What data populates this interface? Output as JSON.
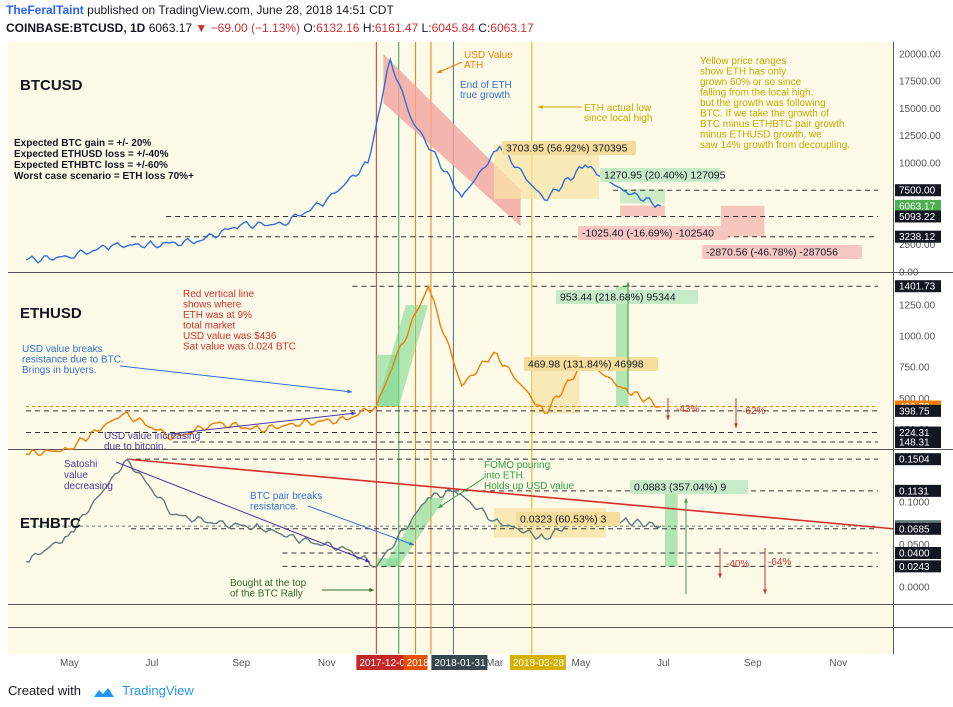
{
  "header": {
    "author": "TheFeralTaint",
    "published": "published on TradingView.com, June 28, 2018 14:51 CDT",
    "symbol": "COINBASE:BTCUSD, 1D",
    "price": "6063.17",
    "change": "−69.00 (−1.13%)",
    "o_label": "O:",
    "o_value": "6132.16",
    "h_label": "H:",
    "h_value": "6161.47",
    "l_label": "L:",
    "l_value": "6045.84",
    "c_label": "C:",
    "c_value": "6063.17"
  },
  "footer": {
    "created_with": "Created with",
    "brand": "TradingView"
  },
  "colors": {
    "bg": "#fdfbe8",
    "btc": "#2f6fd8",
    "eth": "#f57c00",
    "ethbtc": "#607d7b",
    "red_zone": "#f2a4a0",
    "green_zone": "#7fd88f",
    "yellow_zone": "#f7e3a6",
    "red_line": "#d32f2f"
  },
  "chart_data": [
    {
      "type": "line",
      "title": "BTCUSD",
      "series": [
        {
          "x": [
            "2017-04-01",
            "2017-05-01",
            "2017-06-01",
            "2017-07-01",
            "2017-08-01",
            "2017-09-01",
            "2017-10-01",
            "2017-11-01",
            "2017-12-01",
            "2017-12-17",
            "2018-01-01",
            "2018-02-06",
            "2018-03-05",
            "2018-04-06",
            "2018-05-05",
            "2018-06-01",
            "2018-06-28"
          ],
          "values": [
            1100,
            1400,
            2400,
            2500,
            2800,
            4300,
            4400,
            6500,
            10000,
            19500,
            14000,
            6900,
            11500,
            6600,
            9800,
            7500,
            6063
          ]
        }
      ],
      "y_ticks": [
        "20000.00",
        "17500.00",
        "15000.00",
        "12500.00",
        "10000.00",
        "7500.00",
        "5000.00",
        "2500.00",
        "0.00"
      ],
      "price_labels": [
        "7500.00",
        "6063.17",
        "5093.22",
        "3238.12"
      ],
      "ylim": [
        0,
        21000
      ]
    },
    {
      "type": "line",
      "title": "ETHUSD",
      "series": [
        {
          "x": [
            "2017-04-01",
            "2017-05-01",
            "2017-06-10",
            "2017-07-15",
            "2017-08-15",
            "2017-09-15",
            "2017-10-15",
            "2017-11-15",
            "2017-12-07",
            "2017-12-20",
            "2018-01-13",
            "2018-02-06",
            "2018-03-01",
            "2018-04-06",
            "2018-05-05",
            "2018-06-01",
            "2018-06-28"
          ],
          "values": [
            50,
            90,
            380,
            180,
            300,
            250,
            300,
            330,
            436,
            800,
            1400,
            600,
            870,
            380,
            800,
            580,
            433.73
          ]
        }
      ],
      "y_ticks": [
        "1250.00",
        "1000.00",
        "750.00",
        "500.00",
        "250.00"
      ],
      "price_labels": [
        "1401.73",
        "433.73",
        "398.75",
        "224.31",
        "148.31"
      ],
      "ylim": [
        100,
        1500
      ]
    },
    {
      "type": "line",
      "title": "ETHBTC",
      "series": [
        {
          "x": [
            "2017-04-01",
            "2017-05-01",
            "2017-06-12",
            "2017-07-15",
            "2017-08-15",
            "2017-09-15",
            "2017-10-15",
            "2017-11-15",
            "2017-12-07",
            "2018-01-13",
            "2018-02-01",
            "2018-03-01",
            "2018-04-06",
            "2018-05-05",
            "2018-06-01",
            "2018-06-28"
          ],
          "values": [
            0.03,
            0.06,
            0.15,
            0.085,
            0.075,
            0.07,
            0.055,
            0.045,
            0.024,
            0.105,
            0.1131,
            0.078,
            0.057,
            0.085,
            0.078,
            0.0716
          ]
        }
      ],
      "y_ticks": [
        "0.1000",
        "0.0500",
        "0.0000"
      ],
      "price_labels": [
        "0.1504",
        "0.1131",
        "0.0716",
        "0.0685",
        "0.0400",
        "0.0243"
      ],
      "ylim": [
        -0.02,
        0.16
      ]
    }
  ],
  "x_axis": {
    "ticks": [
      "May",
      "Jul",
      "Sep",
      "Nov",
      "Mar",
      "May",
      "Jul",
      "Sep",
      "Nov"
    ],
    "markers": [
      "2017-12-07",
      "2018",
      "2018-01-31",
      "2018-03-28"
    ]
  },
  "annotations": {
    "btc": {
      "pane_title": "BTCUSD",
      "expectations": [
        "Expected BTC gain = +/- 20%",
        "Expected ETHUSD loss = +/-40%",
        "Expected ETHBTC loss = +/-60%",
        "Worst case scenario = ETH loss 70%+"
      ],
      "ath": [
        "USD Value",
        "ATH"
      ],
      "true_growth": [
        "End of ETH",
        "true growth"
      ],
      "actual_low": [
        "ETH actual low",
        "since local high"
      ],
      "note": [
        "Yellow price ranges",
        "show ETH has only",
        "grown 60% or so since",
        "falling from the local high,",
        "but the growth was following",
        "BTC.  If we take the growth of",
        "BTC minus ETHBTC pair growth",
        "minus ETHUSD growth, we",
        "saw 14% growth from decoupling."
      ],
      "m1": "3703.95 (56.92%) 370395",
      "m2": "1270.95 (20.40%) 127095",
      "m3": "-1025.40 (-16.69%) -102540",
      "m4": "-2870.56 (-46.78%) -287056"
    },
    "eth": {
      "pane_title": "ETHUSD",
      "red_note": [
        "Red vertical line",
        "shows where",
        "ETH was at 9%",
        "total market",
        "USD value was $436",
        "Sat value was 0.024 BTC"
      ],
      "breaks": [
        "USD value breaks",
        "resistance due to BTC.",
        "Brings in buyers."
      ],
      "increasing": [
        "USD value increasing",
        "due to bitcoin."
      ],
      "m1": "469.98 (131.84%) 46998",
      "m2": "953.44 (218.68%) 95344",
      "pct1": "-43%",
      "pct2": "-62%"
    },
    "ethbtc": {
      "pane_title": "ETHBTC",
      "satoshi": [
        "Satoshi",
        "value",
        "decreasing"
      ],
      "pair_breaks": [
        "BTC pair breaks",
        "resistance."
      ],
      "fomo": [
        "FOMO pouring",
        "into ETH.",
        "Holds up USD value"
      ],
      "bought": [
        "Bought at the top",
        "of the BTC Rally"
      ],
      "m1": "0.0323 (60.53%) 3",
      "m2": "0.0883 (357.04%) 9",
      "pct1": "-40%",
      "pct2": "-64%"
    }
  }
}
